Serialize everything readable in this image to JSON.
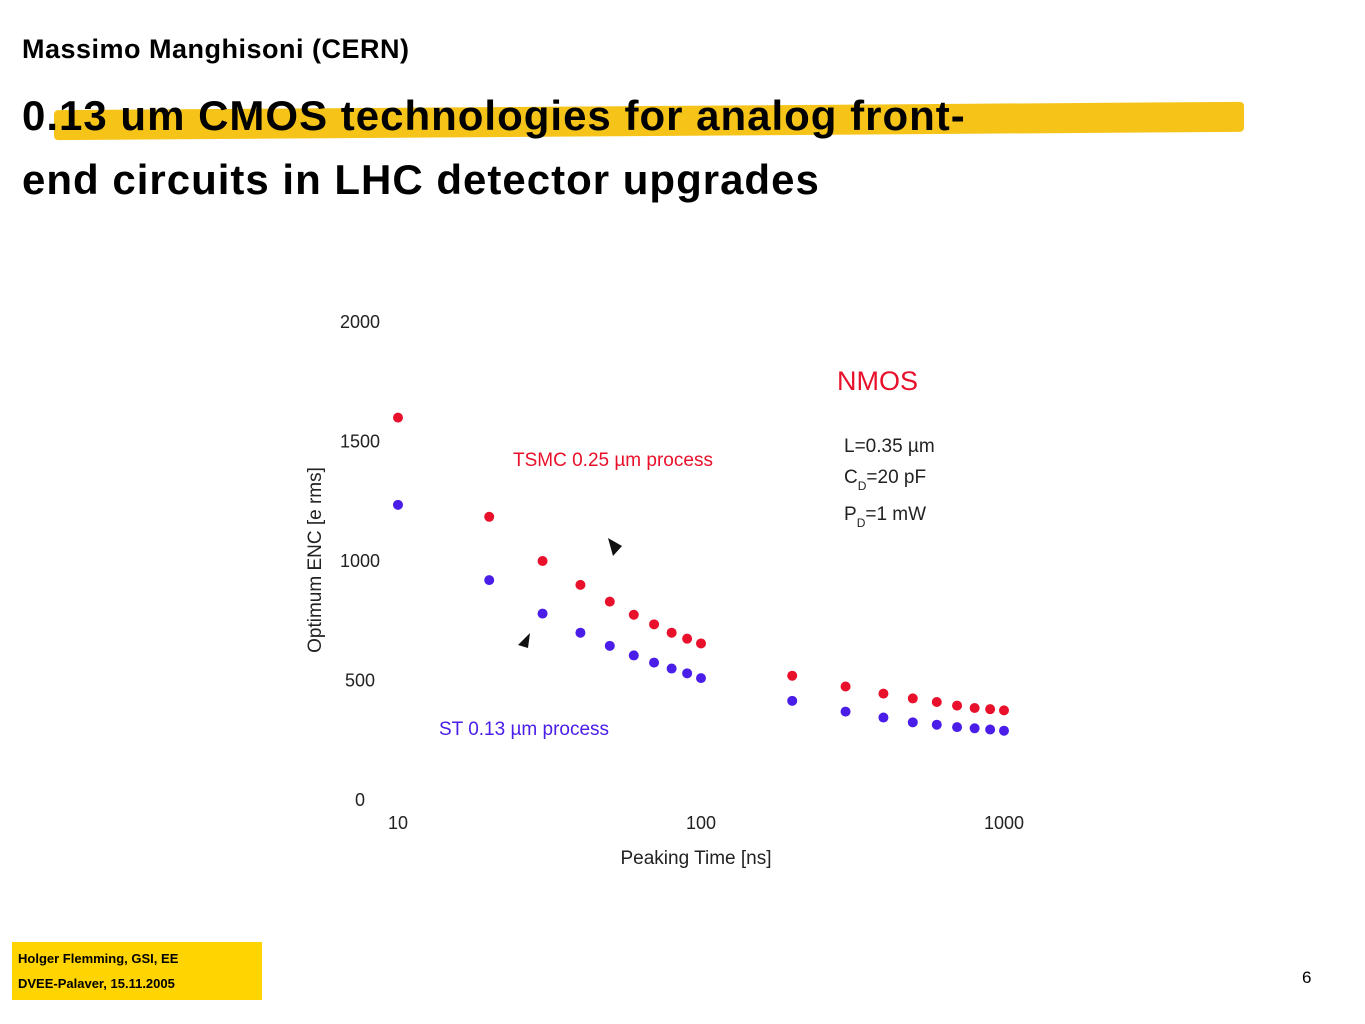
{
  "header": {
    "author": "Massimo Manghisoni (CERN)",
    "title_line1": "0.13 um CMOS technologies for analog front-",
    "title_line2": "end circuits in LHC detector upgrades"
  },
  "chart_data": {
    "type": "scatter",
    "xscale": "log",
    "xlim": [
      10,
      1000
    ],
    "ylim": [
      0,
      2000
    ],
    "xlabel": "Peaking Time [ns]",
    "ylabel": "Optimum ENC [e rms]",
    "xticks": [
      "10",
      "100",
      "1000"
    ],
    "yticks": [
      "0",
      "500",
      "1000",
      "1500",
      "2000"
    ],
    "grid": false,
    "series": [
      {
        "name": "TSMC 0.25 µm process",
        "color": "#e8102a",
        "x": [
          10,
          20,
          30,
          40,
          50,
          60,
          70,
          80,
          90,
          100,
          200,
          300,
          400,
          500,
          600,
          700,
          800,
          900,
          1000
        ],
        "y": [
          1600,
          1185,
          1000,
          900,
          830,
          775,
          735,
          700,
          675,
          655,
          520,
          475,
          445,
          425,
          410,
          395,
          385,
          380,
          375
        ]
      },
      {
        "name": "ST 0.13 µm process",
        "color": "#4a1ee8",
        "x": [
          10,
          20,
          30,
          40,
          50,
          60,
          70,
          80,
          90,
          100,
          200,
          300,
          400,
          500,
          600,
          700,
          800,
          900,
          1000
        ],
        "y": [
          1235,
          920,
          780,
          700,
          645,
          605,
          575,
          550,
          530,
          510,
          415,
          370,
          345,
          325,
          315,
          305,
          300,
          295,
          290
        ]
      }
    ],
    "annotations": {
      "device": "NMOS",
      "device_color": "#e8102a",
      "params": [
        {
          "main": "L=0.35 µm",
          "sub": ""
        },
        {
          "main": "C",
          "sub": "D",
          "rest": "=20 pF"
        },
        {
          "main": "P",
          "sub": "D",
          "rest": "=1 mW"
        }
      ]
    }
  },
  "footer": {
    "line1": "Holger Flemming,  GSI, EE",
    "line2": "DVEE-Palaver, 15.11.2005",
    "page": "6"
  }
}
